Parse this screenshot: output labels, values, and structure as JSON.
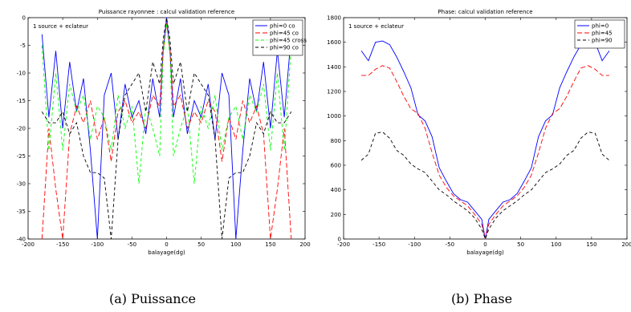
{
  "chart_data": [
    {
      "type": "line",
      "title": "Puissance rayonnee : calcul validation reference",
      "annotation": "1 source + eclateur",
      "xlabel": "balayage(dg)",
      "ylabel": "",
      "xlim": [
        -200,
        200
      ],
      "ylim": [
        -40,
        0
      ],
      "xticks": [
        -200,
        -150,
        -100,
        -50,
        0,
        50,
        100,
        150,
        200
      ],
      "yticks": [
        0,
        -5,
        -10,
        -15,
        -20,
        -25,
        -30,
        -35,
        -40
      ],
      "grid": false,
      "legend_position": "top-right",
      "caption": "(a) Puissance",
      "x": [
        -180,
        -170,
        -160,
        -150,
        -140,
        -130,
        -120,
        -110,
        -100,
        -90,
        -80,
        -70,
        -60,
        -50,
        -40,
        -30,
        -20,
        -10,
        -5,
        0,
        5,
        10,
        20,
        30,
        40,
        50,
        60,
        70,
        80,
        90,
        100,
        110,
        120,
        130,
        140,
        150,
        160,
        170,
        180
      ],
      "series": [
        {
          "name": "phi=0 co",
          "color": "#0000ff",
          "dash": "solid",
          "values": [
            -3,
            -18,
            -6,
            -20,
            -8,
            -17,
            -11,
            -24,
            -40,
            -14,
            -10,
            -22,
            -12,
            -18,
            -15,
            -21,
            -11,
            -18,
            -6,
            0,
            -6,
            -18,
            -11,
            -21,
            -15,
            -18,
            -12,
            -22,
            -10,
            -14,
            -40,
            -24,
            -11,
            -17,
            -8,
            -20,
            -6,
            -18,
            -3
          ]
        },
        {
          "name": "phi=45 co",
          "color": "#ff0000",
          "dash": "6,3",
          "values": [
            -40,
            -20,
            -31,
            -40,
            -21,
            -16,
            -19,
            -15,
            -22,
            -18,
            -26,
            -17,
            -15,
            -19,
            -17,
            -20,
            -14,
            -16,
            -6,
            -1,
            -6,
            -16,
            -14,
            -20,
            -17,
            -19,
            -15,
            -17,
            -26,
            -18,
            -22,
            -15,
            -19,
            -16,
            -21,
            -40,
            -31,
            -20,
            -40
          ]
        },
        {
          "name": "phi=45 cross",
          "color": "#00ff00",
          "dash": "4,3",
          "values": [
            -5,
            -24,
            -10,
            -24,
            -12,
            -17,
            -14,
            -22,
            -16,
            -18,
            -24,
            -14,
            -20,
            -16,
            -30,
            -16,
            -20,
            -25,
            -7,
            -1,
            -7,
            -25,
            -20,
            -16,
            -30,
            -16,
            -20,
            -14,
            -24,
            -18,
            -16,
            -22,
            -14,
            -17,
            -12,
            -24,
            -10,
            -24,
            -5
          ]
        },
        {
          "name": "phi=90  co",
          "color": "#000000",
          "dash": "4,3",
          "values": [
            -17,
            -19,
            -19,
            -17,
            -21,
            -19,
            -25,
            -28,
            -28,
            -29,
            -40,
            -22,
            -14,
            -12,
            -10,
            -17,
            -8,
            -12,
            -4,
            0,
            -4,
            -12,
            -8,
            -17,
            -10,
            -12,
            -14,
            -22,
            -40,
            -29,
            -28,
            -28,
            -25,
            -19,
            -21,
            -17,
            -19,
            -19,
            -17
          ]
        }
      ]
    },
    {
      "type": "line",
      "title": "Phase: calcul validation reference",
      "annotation": "1 source + eclateur",
      "xlabel": "balayage(dg)",
      "ylabel": "",
      "xlim": [
        -200,
        200
      ],
      "ylim": [
        0,
        1800
      ],
      "xticks": [
        -200,
        -150,
        -100,
        -50,
        0,
        50,
        100,
        150,
        200
      ],
      "yticks": [
        0,
        200,
        400,
        600,
        800,
        1000,
        1200,
        1400,
        1600,
        1800
      ],
      "grid": false,
      "legend_position": "top-right",
      "caption": "(b) Phase",
      "x": [
        -175,
        -165,
        -155,
        -145,
        -135,
        -125,
        -115,
        -105,
        -95,
        -85,
        -75,
        -65,
        -55,
        -45,
        -35,
        -25,
        -15,
        -5,
        0,
        5,
        15,
        25,
        35,
        45,
        55,
        65,
        75,
        85,
        95,
        105,
        115,
        125,
        135,
        145,
        155,
        165,
        175
      ],
      "series": [
        {
          "name": "phi=0",
          "color": "#0000ff",
          "dash": "solid",
          "values": [
            1530,
            1450,
            1600,
            1610,
            1580,
            1480,
            1360,
            1230,
            1010,
            960,
            830,
            580,
            470,
            370,
            320,
            300,
            230,
            160,
            0,
            160,
            230,
            300,
            320,
            370,
            470,
            580,
            830,
            960,
            1010,
            1230,
            1360,
            1480,
            1580,
            1610,
            1600,
            1450,
            1530
          ]
        },
        {
          "name": "phi=45",
          "color": "#ff0000",
          "dash": "6,3",
          "values": [
            1330,
            1330,
            1380,
            1410,
            1390,
            1280,
            1160,
            1060,
            1020,
            900,
            700,
            520,
            420,
            350,
            310,
            270,
            200,
            120,
            0,
            120,
            200,
            270,
            310,
            350,
            420,
            520,
            700,
            900,
            1020,
            1060,
            1160,
            1280,
            1390,
            1410,
            1380,
            1330,
            1330
          ]
        },
        {
          "name": "phi=90",
          "color": "#000000",
          "dash": "4,3",
          "values": [
            640,
            690,
            860,
            870,
            820,
            720,
            680,
            610,
            570,
            540,
            470,
            400,
            360,
            310,
            270,
            230,
            170,
            80,
            0,
            80,
            170,
            230,
            270,
            310,
            360,
            400,
            470,
            540,
            570,
            610,
            680,
            720,
            820,
            870,
            860,
            690,
            640
          ]
        }
      ]
    }
  ]
}
